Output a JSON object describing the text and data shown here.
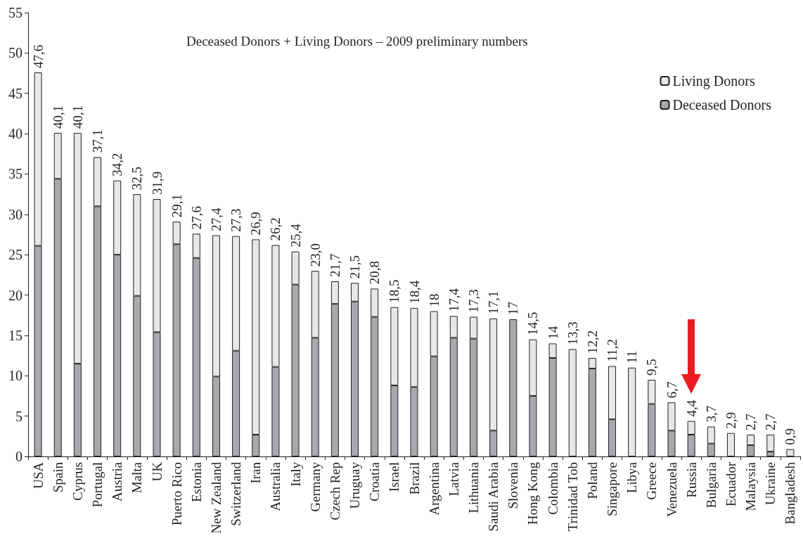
{
  "chart_data": {
    "type": "bar",
    "title": "Deceased Donors + Living Donors – 2009 preliminary numbers",
    "categories": [
      "USA",
      "Spain",
      "Cyprus",
      "Portugal",
      "Austria",
      "Malta",
      "UK",
      "Puerto Rico",
      "Estonia",
      "New Zealand",
      "Switzerland",
      "Iran",
      "Australia",
      "Italy",
      "Germany",
      "Czech Rep",
      "Uruguay",
      "Croatia",
      "Israel",
      "Brazil",
      "Argentina",
      "Latvia",
      "Lithuania",
      "Saudi Arabia",
      "Slovenia",
      "Hong Kong",
      "Colombia",
      "Trinidad Tob",
      "Poland",
      "Singapore",
      "Libya",
      "Greece",
      "Venezuela",
      "Russia",
      "Bulgaria",
      "Ecuador",
      "Malaysia",
      "Ukraine",
      "Bangladesh"
    ],
    "stacked": true,
    "series": [
      {
        "name": "Deceased Donors",
        "color": "#a7a9ac",
        "values": [
          26.1,
          34.4,
          11.5,
          31.0,
          25.0,
          19.9,
          15.4,
          26.3,
          24.6,
          9.9,
          13.1,
          2.7,
          11.1,
          21.3,
          14.7,
          18.9,
          19.2,
          17.3,
          8.8,
          8.6,
          12.4,
          14.7,
          14.6,
          3.2,
          17.0,
          7.5,
          12.2,
          0,
          10.9,
          4.6,
          0,
          6.5,
          3.2,
          2.7,
          1.6,
          0,
          1.4,
          0.6,
          0
        ]
      },
      {
        "name": "Living Donors",
        "color": "#e6e7e8",
        "values": [
          21.5,
          5.7,
          28.6,
          6.1,
          9.2,
          12.6,
          16.5,
          2.8,
          3.0,
          17.5,
          14.2,
          24.2,
          15.1,
          4.1,
          8.3,
          2.8,
          2.3,
          3.5,
          9.7,
          9.8,
          5.6,
          2.7,
          2.7,
          13.9,
          0,
          7.0,
          1.8,
          13.3,
          1.3,
          6.6,
          11.0,
          3.0,
          3.5,
          1.7,
          2.1,
          2.9,
          1.3,
          2.1,
          0.9
        ]
      }
    ],
    "totals": [
      "47,6",
      "40,1",
      "40,1",
      "37,1",
      "34,2",
      "32,5",
      "31,9",
      "29,1",
      "27,6",
      "27,4",
      "27,3",
      "26,9",
      "26,2",
      "25,4",
      "23,0",
      "21,7",
      "21,5",
      "20,8",
      "18,5",
      "18,4",
      "18",
      "17,4",
      "17,3",
      "17,1",
      "17",
      "14,5",
      "14",
      "13,3",
      "12,2",
      "11,2",
      "11",
      "9,5",
      "6,7",
      "4,4",
      "3,7",
      "2,9",
      "2,7",
      "2,7",
      "0,9"
    ],
    "ylim": [
      0,
      55
    ],
    "yticks": [
      0,
      5,
      10,
      15,
      20,
      25,
      30,
      35,
      40,
      45,
      50,
      55
    ],
    "grid": false,
    "legend": "top right"
  }
}
